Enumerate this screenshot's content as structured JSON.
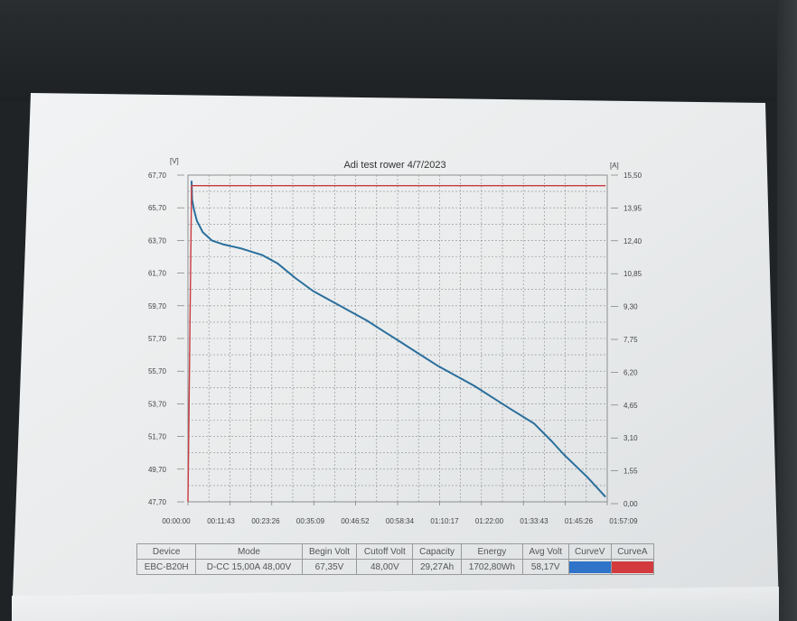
{
  "chart_data": {
    "type": "line",
    "title": "Adi test rower 4/7/2023",
    "left_axis_unit": "[V]",
    "right_axis_unit": "[A]",
    "x_tick_labels": [
      "00:00:00",
      "00:11:43",
      "00:23:26",
      "00:35:09",
      "00:46:52",
      "00:58:34",
      "01:10:17",
      "01:22:00",
      "01:33:43",
      "01:45:26",
      "01:57:09"
    ],
    "x_range_seconds": [
      0,
      7029
    ],
    "y_left_ticks": [
      "67,70",
      "65,70",
      "63,70",
      "61,70",
      "59,70",
      "57,70",
      "55,70",
      "53,70",
      "51,70",
      "49,70",
      "47,70"
    ],
    "y_left_range": [
      47.7,
      67.7
    ],
    "y_right_ticks": [
      "15,50",
      "13,95",
      "12,40",
      "10,85",
      "9,30",
      "7,75",
      "6,20",
      "4,65",
      "3,10",
      "1,55",
      "0,00"
    ],
    "y_right_range": [
      0,
      15.5
    ],
    "grid": true,
    "series": [
      {
        "axis": "left",
        "color": "#2a6f9c",
        "x_seconds": [
          60,
          70,
          100,
          150,
          250,
          400,
          600,
          900,
          1250,
          1500,
          1800,
          2100,
          2400,
          2700,
          3000,
          3300,
          3600,
          3900,
          4200,
          4500,
          4800,
          5100,
          5400,
          5800,
          6100,
          6300,
          6500,
          6700,
          6900,
          7000
        ],
        "values": [
          67.35,
          66.2,
          65.6,
          64.9,
          64.2,
          63.7,
          63.45,
          63.2,
          62.8,
          62.3,
          61.4,
          60.6,
          60.0,
          59.4,
          58.8,
          58.1,
          57.4,
          56.7,
          56.0,
          55.4,
          54.8,
          54.1,
          53.4,
          52.5,
          51.4,
          50.6,
          49.9,
          49.2,
          48.4,
          48.0
        ]
      },
      {
        "axis": "right",
        "color": "#c9393f",
        "x_seconds": [
          0,
          60,
          100,
          7000
        ],
        "values": [
          0,
          15.0,
          15.0,
          15.0
        ]
      }
    ],
    "table": {
      "headers": [
        "Device",
        "Mode",
        "Begin Volt",
        "Cutoff Volt",
        "Capacity",
        "Energy",
        "Avg Volt",
        "CurveV",
        "CurveA"
      ],
      "row": [
        "EBC-B20H",
        "D-CC 15,00A 48,00V",
        "67,35V",
        "48,00V",
        "29,27Ah",
        "1702,80Wh",
        "58,17V",
        "",
        ""
      ],
      "curve_v_color": "#2f74c8",
      "curve_a_color": "#d23a3e"
    }
  }
}
